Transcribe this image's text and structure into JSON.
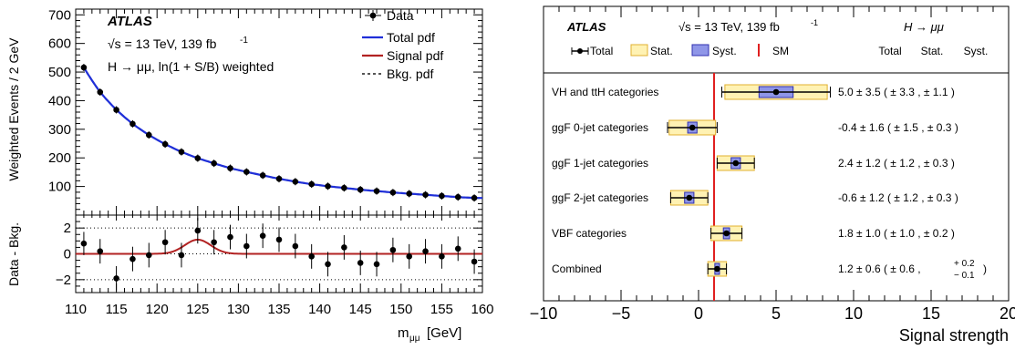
{
  "chart_data": [
    {
      "type": "scatter",
      "panel": "invariant-mass-spectrum",
      "atlas_label": "ATLAS",
      "energy_label": "√s = 13 TeV, 139 fb",
      "energy_sup": "-1",
      "channel_label": "H → μμ, ln(1 + S/B) weighted",
      "ylabel_top": "Weighted Events / 2 GeV",
      "ylabel_bottom": "Data - Bkg.",
      "xlabel_main": "m",
      "xlabel_sub": "μμ",
      "xlabel_unit": "[GeV]",
      "xlim": [
        110,
        160
      ],
      "ylim_top": [
        0,
        720
      ],
      "ylim_bottom": [
        -3,
        3
      ],
      "x_ticks": [
        "110",
        "115",
        "120",
        "125",
        "130",
        "135",
        "140",
        "145",
        "150",
        "155",
        "160"
      ],
      "y_ticks_top": [
        "100",
        "200",
        "300",
        "400",
        "500",
        "600",
        "700"
      ],
      "y_ticks_bottom": [
        "−2",
        "0",
        "2"
      ],
      "legend": [
        {
          "label": "Data",
          "color": "#000000",
          "style": "point"
        },
        {
          "label": "Total pdf",
          "color": "#1f2fd9",
          "style": "line"
        },
        {
          "label": "Signal pdf",
          "color": "#b22222",
          "style": "line"
        },
        {
          "label": "Bkg. pdf",
          "color": "#555555",
          "style": "dashed"
        }
      ],
      "x": [
        111,
        113,
        115,
        117,
        119,
        121,
        123,
        125,
        127,
        129,
        131,
        133,
        135,
        137,
        139,
        141,
        143,
        145,
        147,
        149,
        151,
        153,
        155,
        157,
        159
      ],
      "data": [
        516,
        430,
        368,
        319,
        280,
        248,
        221,
        199,
        181,
        164,
        151,
        139,
        127,
        117,
        108,
        101,
        95,
        89,
        84,
        79,
        75,
        71,
        67,
        63,
        60
      ],
      "data_minus_bkg": [
        0.8,
        0.2,
        -1.9,
        -0.4,
        -0.1,
        0.9,
        -0.1,
        1.8,
        0.9,
        1.3,
        0.6,
        1.4,
        1.1,
        0.6,
        -0.2,
        -0.8,
        0.5,
        -0.7,
        -0.8,
        0.3,
        -0.2,
        0.2,
        -0.2,
        0.4,
        -0.6
      ],
      "data_minus_bkg_err": [
        0.9,
        0.95,
        0.95,
        0.95,
        0.95,
        0.95,
        0.95,
        1.0,
        0.95,
        0.95,
        0.95,
        0.95,
        0.95,
        0.95,
        0.95,
        0.95,
        0.95,
        0.95,
        0.95,
        0.95,
        0.95,
        0.95,
        0.95,
        0.95,
        0.95
      ],
      "signal_peak": {
        "mean": 125,
        "sigma": 1.6,
        "amplitude": 1.1
      }
    },
    {
      "type": "scatter",
      "panel": "signal-strength-summary",
      "atlas_label": "ATLAS",
      "energy_label": "√s = 13 TeV,  139 fb",
      "energy_sup": "-1",
      "channel_label": "H → μμ",
      "xlabel": "Signal strength",
      "xlim": [
        -10,
        20
      ],
      "x_ticks": [
        "−10",
        "−5",
        "0",
        "5",
        "10",
        "15",
        "20"
      ],
      "sm_value": 1,
      "legend": [
        {
          "label": "Total",
          "style": "errorbar"
        },
        {
          "label": "Stat.",
          "color": "#fff2b3",
          "style": "box"
        },
        {
          "label": "Syst.",
          "color": "#8f96e8",
          "style": "box"
        },
        {
          "label": "SM",
          "color": "#e02020",
          "style": "line"
        }
      ],
      "column_headers": [
        "Total",
        "Stat.",
        "Syst."
      ],
      "categories": [
        {
          "name": "VH and ttH categories",
          "mu": 5.0,
          "tot": 3.5,
          "stat": 3.3,
          "syst": 1.1,
          "text": "5.0  ± 3.5  (  ± 3.3 ,  ± 1.1 )"
        },
        {
          "name": "ggF 0-jet categories",
          "mu": -0.4,
          "tot": 1.6,
          "stat": 1.5,
          "syst": 0.3,
          "text": "-0.4  ± 1.6  (  ± 1.5 ,  ± 0.3 )"
        },
        {
          "name": "ggF 1-jet categories",
          "mu": 2.4,
          "tot": 1.2,
          "stat": 1.2,
          "syst": 0.3,
          "text": "2.4  ± 1.2  (  ± 1.2 ,  ± 0.3 )"
        },
        {
          "name": "ggF 2-jet categories",
          "mu": -0.6,
          "tot": 1.2,
          "stat": 1.2,
          "syst": 0.3,
          "text": "-0.6  ± 1.2  (  ± 1.2 ,  ± 0.3 )"
        },
        {
          "name": "VBF categories",
          "mu": 1.8,
          "tot": 1.0,
          "stat": 1.0,
          "syst": 0.2,
          "text": "1.8  ± 1.0  (  ± 1.0 ,  ± 0.2 )"
        },
        {
          "name": "Combined",
          "mu": 1.2,
          "tot": 0.6,
          "stat": 0.6,
          "syst": 0.15,
          "text": "1.2  ± 0.6  (  ± 0.6 ,",
          "syst_up": "+ 0.2",
          "syst_down": "− 0.1",
          "close": ")"
        }
      ]
    }
  ]
}
